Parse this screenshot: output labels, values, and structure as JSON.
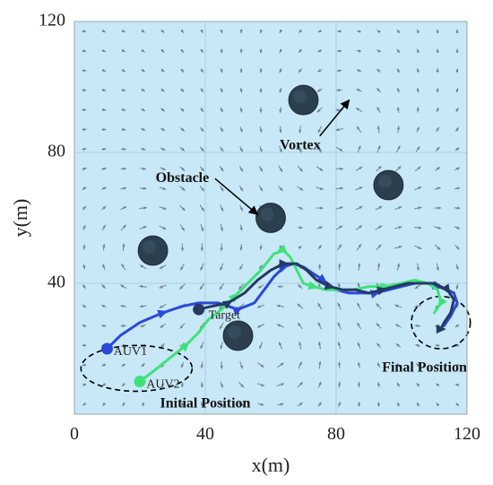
{
  "chart_data": {
    "type": "line",
    "title": "",
    "xlabel": "x(m)",
    "ylabel": "y(m)",
    "xlim": [
      0,
      120
    ],
    "ylim": [
      0,
      120
    ],
    "x_ticks": [
      0,
      40,
      80,
      120
    ],
    "y_ticks": [
      40,
      80,
      120
    ],
    "grid": true,
    "colors": {
      "background": "#c8e8f7",
      "grid": "#a9cfe0",
      "obstacle": "#2b3f4f",
      "auv1": "#2b49d8",
      "auv2": "#3fe27a",
      "target": "#243a64",
      "flow_arrow": "#6e8190"
    },
    "obstacles": [
      {
        "x": 70,
        "y": 96,
        "r": 4.5
      },
      {
        "x": 96,
        "y": 70,
        "r": 4.5
      },
      {
        "x": 60,
        "y": 60,
        "r": 4.5
      },
      {
        "x": 24,
        "y": 50,
        "r": 4.5
      },
      {
        "x": 50,
        "y": 24,
        "r": 4.5
      }
    ],
    "series": [
      {
        "name": "AUV1",
        "color": "#2b49d8",
        "start": [
          10,
          20
        ],
        "points": [
          [
            10,
            20
          ],
          [
            14,
            24
          ],
          [
            20,
            28
          ],
          [
            27,
            31
          ],
          [
            33,
            33
          ],
          [
            38,
            34
          ],
          [
            44,
            34
          ],
          [
            50,
            32
          ],
          [
            55,
            34
          ],
          [
            58,
            38
          ],
          [
            61,
            42
          ],
          [
            64,
            45
          ],
          [
            67,
            46
          ],
          [
            70,
            45
          ],
          [
            73,
            43
          ],
          [
            76,
            41
          ],
          [
            80,
            38
          ],
          [
            84,
            37
          ],
          [
            88,
            37
          ],
          [
            92,
            37
          ],
          [
            96,
            38
          ],
          [
            100,
            39
          ],
          [
            104,
            40
          ],
          [
            108,
            40
          ],
          [
            111,
            39
          ],
          [
            114,
            38
          ],
          [
            116,
            37
          ],
          [
            117,
            34
          ],
          [
            115,
            30
          ],
          [
            113,
            27
          ]
        ],
        "arrows": [
          3,
          7,
          11,
          15,
          19,
          24
        ]
      },
      {
        "name": "AUV2",
        "color": "#3fe27a",
        "start": [
          20,
          10
        ],
        "points": [
          [
            20,
            10
          ],
          [
            24,
            13
          ],
          [
            29,
            17
          ],
          [
            34,
            21
          ],
          [
            38,
            25
          ],
          [
            41,
            29
          ],
          [
            45,
            32
          ],
          [
            49,
            36
          ],
          [
            53,
            40
          ],
          [
            57,
            44
          ],
          [
            61,
            49
          ],
          [
            64,
            50
          ],
          [
            66,
            48
          ],
          [
            68,
            44
          ],
          [
            70,
            40
          ],
          [
            73,
            39
          ],
          [
            77,
            38
          ],
          [
            81,
            38
          ],
          [
            85,
            38
          ],
          [
            90,
            39
          ],
          [
            95,
            39
          ],
          [
            100,
            40
          ],
          [
            104,
            41
          ],
          [
            108,
            40
          ],
          [
            111,
            38
          ],
          [
            112,
            34
          ],
          [
            110,
            31
          ]
        ],
        "arrows": [
          3,
          7,
          11,
          15,
          20,
          25
        ]
      },
      {
        "name": "Target",
        "color": "#243a64",
        "start": [
          38,
          32
        ],
        "points": [
          [
            38,
            32
          ],
          [
            42,
            33
          ],
          [
            47,
            34
          ],
          [
            52,
            37
          ],
          [
            56,
            41
          ],
          [
            60,
            44
          ],
          [
            64,
            46
          ],
          [
            68,
            46
          ],
          [
            71,
            44
          ],
          [
            74,
            41
          ],
          [
            78,
            39
          ],
          [
            82,
            38
          ],
          [
            86,
            38
          ],
          [
            90,
            37
          ],
          [
            94,
            38
          ],
          [
            98,
            39
          ],
          [
            102,
            40
          ],
          [
            106,
            40
          ],
          [
            110,
            40
          ],
          [
            114,
            38
          ],
          [
            116,
            35
          ],
          [
            115,
            31
          ],
          [
            113,
            28
          ],
          [
            112,
            26
          ]
        ],
        "arrows": [
          2,
          6,
          10,
          14,
          19,
          23
        ]
      }
    ],
    "annotations": [
      {
        "text": "Vortex",
        "x": 69,
        "y": 82
      },
      {
        "text": "Obstacle",
        "x": 33,
        "y": 72
      },
      {
        "text": "Initial Position",
        "x": 40,
        "y": 3
      },
      {
        "text": "Final Position",
        "x": 107,
        "y": 14
      },
      {
        "text": "AUV1",
        "x": 12,
        "y": 19
      },
      {
        "text": "AUV2",
        "x": 22,
        "y": 9
      },
      {
        "text": "Target",
        "x": 41,
        "y": 30
      }
    ],
    "pointer_arrows": [
      {
        "from": [
          75,
          85
        ],
        "to": [
          84,
          96
        ]
      },
      {
        "from": [
          43,
          72
        ],
        "to": [
          56,
          61
        ]
      }
    ],
    "dashed_ellipses": [
      {
        "cx": 19,
        "cy": 14,
        "rx": 17,
        "ry": 7
      },
      {
        "cx": 112,
        "cy": 28,
        "rx": 9,
        "ry": 8
      }
    ]
  }
}
